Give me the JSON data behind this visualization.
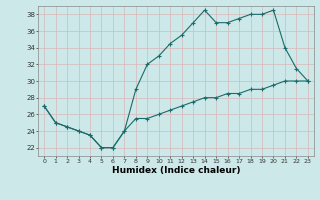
{
  "title": "",
  "xlabel": "Humidex (Indice chaleur)",
  "ylabel": "",
  "background_color": "#cce8e8",
  "grid_color": "#c0d8d8",
  "line_color": "#1a6b6b",
  "ylim": [
    21,
    39
  ],
  "xlim": [
    -0.5,
    23.5
  ],
  "yticks": [
    22,
    24,
    26,
    28,
    30,
    32,
    34,
    36,
    38
  ],
  "xticks": [
    0,
    1,
    2,
    3,
    4,
    5,
    6,
    7,
    8,
    9,
    10,
    11,
    12,
    13,
    14,
    15,
    16,
    17,
    18,
    19,
    20,
    21,
    22,
    23
  ],
  "line1_x": [
    0,
    1,
    2,
    3,
    4,
    5,
    6,
    7,
    8,
    9,
    10,
    11,
    12,
    13,
    14,
    15,
    16,
    17,
    18,
    19,
    20,
    21,
    22,
    23
  ],
  "line1_y": [
    27,
    25,
    24.5,
    24,
    23.5,
    22,
    22,
    24,
    25.5,
    25.5,
    26,
    26.5,
    27,
    27.5,
    28,
    28,
    28.5,
    28.5,
    29,
    29,
    29.5,
    30,
    30,
    30
  ],
  "line2_x": [
    0,
    1,
    2,
    3,
    4,
    5,
    6,
    7,
    8,
    9,
    10,
    11,
    12,
    13,
    14,
    15,
    16,
    17,
    18,
    19,
    20,
    21,
    22,
    23
  ],
  "line2_y": [
    27,
    25,
    24.5,
    24,
    23.5,
    22,
    22,
    24,
    29,
    32,
    33,
    34.5,
    35.5,
    37,
    38.5,
    37,
    37,
    37.5,
    38,
    38,
    38.5,
    34,
    31.5,
    30
  ]
}
